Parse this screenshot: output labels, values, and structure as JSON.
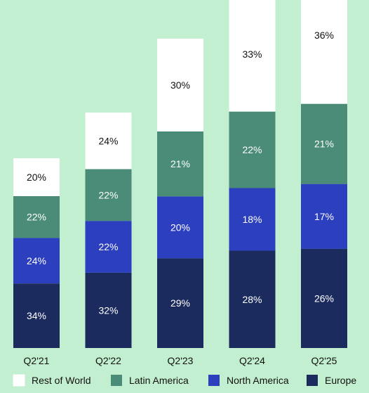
{
  "chart_data": {
    "type": "bar",
    "stacked": true,
    "title": "",
    "xlabel": "",
    "ylabel": "",
    "categories": [
      "Q2'21",
      "Q2'22",
      "Q2'23",
      "Q2'24",
      "Q2'25"
    ],
    "series": [
      {
        "name": "Europe",
        "color": "#1c2b5e",
        "values": [
          34,
          32,
          29,
          28,
          26
        ],
        "labels": [
          "34%",
          "32%",
          "29%",
          "28%",
          "26%"
        ]
      },
      {
        "name": "North America",
        "color": "#2b3fbf",
        "values": [
          24,
          22,
          20,
          18,
          17
        ],
        "labels": [
          "24%",
          "22%",
          "20%",
          "18%",
          "17%"
        ]
      },
      {
        "name": "Latin America",
        "color": "#4a8c77",
        "values": [
          22,
          22,
          21,
          22,
          21
        ],
        "labels": [
          "22%",
          "22%",
          "21%",
          "22%",
          "21%"
        ]
      },
      {
        "name": "Rest of World",
        "color": "#ffffff",
        "values": [
          20,
          24,
          30,
          33,
          36
        ],
        "labels": [
          "20%",
          "24%",
          "30%",
          "33%",
          "36%"
        ]
      }
    ],
    "bar_totals_relative": [
      1.0,
      1.24,
      1.63,
      1.85,
      2.01
    ],
    "legend": {
      "placement": "bottom",
      "order": [
        "Rest of World",
        "Latin America",
        "North America",
        "Europe"
      ]
    },
    "grid": false,
    "axes_visible": false
  }
}
